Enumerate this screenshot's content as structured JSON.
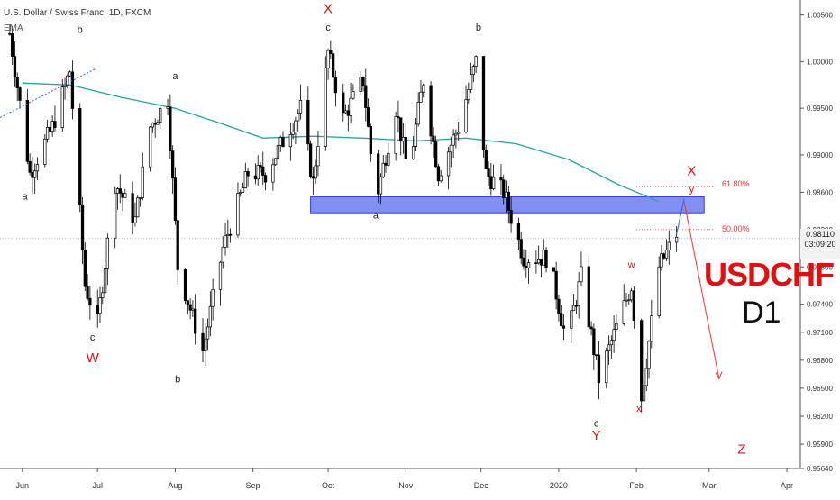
{
  "header": {
    "symbol_title": "U.S. Dollar / Swiss Franc, 1D, FXCM",
    "indicator_label": "EMA"
  },
  "price_badge": {
    "price": "0.98110",
    "countdown": "03:09:20"
  },
  "overlay_title": {
    "pair": "USDCHF",
    "timeframe": "D1"
  },
  "fib_labels": {
    "upper": "61.80%",
    "lower": "50.00%"
  },
  "colors": {
    "candle": "#000000",
    "ema": "#26a69a",
    "zone_fill": "#6b7cf0",
    "zone_border": "#2b3bd9",
    "wave_red": "#e01010",
    "wave_black": "#222222",
    "trendline": "#2962ff",
    "projection": "#e53935",
    "price_badge_bg": "#f2f2f2"
  },
  "chart_data": {
    "type": "candlestick",
    "title": "U.S. Dollar / Swiss Franc, 1D, FXCM",
    "xlabel": "",
    "ylabel": "",
    "x_ticks": [
      "Jun",
      "Jul",
      "Aug",
      "Sep",
      "Oct",
      "Nov",
      "Dec",
      "2020",
      "Feb",
      "Mar",
      "Apr"
    ],
    "y_ticks": [
      1.005,
      1.0,
      0.995,
      0.99,
      0.986,
      0.982,
      0.978,
      0.974,
      0.971,
      0.968,
      0.965,
      0.962,
      0.959,
      0.9564
    ],
    "y_tick_labels": [
      "1.00500",
      "1.00000",
      "0.99500",
      "0.99000",
      "0.98600",
      "0.98200",
      "0.97800",
      "0.97400",
      "0.97100",
      "0.96800",
      "0.96500",
      "0.96200",
      "0.95900",
      "0.95640"
    ],
    "ylim": [
      0.9564,
      1.0066
    ],
    "last_price": 0.9811,
    "ema_line": [
      [
        "2019-06-01",
        0.9977
      ],
      [
        "2019-06-20",
        0.9975
      ],
      [
        "2019-07-10",
        0.9962
      ],
      [
        "2019-08-01",
        0.995
      ],
      [
        "2019-08-20",
        0.9933
      ],
      [
        "2019-09-05",
        0.9918
      ],
      [
        "2019-09-25",
        0.992
      ],
      [
        "2019-10-15",
        0.9918
      ],
      [
        "2019-11-05",
        0.9915
      ],
      [
        "2019-11-25",
        0.9918
      ],
      [
        "2019-12-15",
        0.9912
      ],
      [
        "2020-01-05",
        0.9895
      ],
      [
        "2020-01-25",
        0.9868
      ],
      [
        "2020-02-10",
        0.985
      ]
    ],
    "support_resistance_zone": {
      "from": "2019-09-24",
      "to": "2020-02-28",
      "price_low": 0.9838,
      "price_high": 0.9855
    },
    "fib_levels": [
      {
        "label": "61.80%",
        "price": 0.9866
      },
      {
        "label": "50.00%",
        "price": 0.982
      }
    ],
    "wave_labels": [
      {
        "text": "X",
        "date": "2019-10-01",
        "price": 1.0052,
        "color": "red"
      },
      {
        "text": "c",
        "date": "2019-10-01",
        "price": 1.0033,
        "color": "black"
      },
      {
        "text": "b",
        "date": "2019-06-24",
        "price": 1.0031,
        "color": "black"
      },
      {
        "text": "b",
        "date": "2019-11-30",
        "price": 1.0033,
        "color": "black"
      },
      {
        "text": "a",
        "date": "2019-08-01",
        "price": 0.9981,
        "color": "black"
      },
      {
        "text": "a",
        "date": "2019-06-02",
        "price": 0.9852,
        "color": "black"
      },
      {
        "text": "a",
        "date": "2019-10-20",
        "price": 0.9832,
        "color": "black"
      },
      {
        "text": "c",
        "date": "2019-06-29",
        "price": 0.9701,
        "color": "black"
      },
      {
        "text": "W",
        "date": "2019-06-29",
        "price": 0.9678,
        "color": "red"
      },
      {
        "text": "b",
        "date": "2019-08-02",
        "price": 0.9656,
        "color": "black"
      },
      {
        "text": "X",
        "date": "2020-02-23",
        "price": 0.9878,
        "color": "red"
      },
      {
        "text": "y",
        "date": "2020-02-23",
        "price": 0.986,
        "color": "red"
      },
      {
        "text": "w",
        "date": "2020-01-30",
        "price": 0.9779,
        "color": "red"
      },
      {
        "text": "x",
        "date": "2020-02-02",
        "price": 0.9625,
        "color": "red"
      },
      {
        "text": "c",
        "date": "2020-01-16",
        "price": 0.9609,
        "color": "black"
      },
      {
        "text": "Y",
        "date": "2020-01-16",
        "price": 0.9595,
        "color": "red"
      },
      {
        "text": "Z",
        "date": "2020-03-14",
        "price": 0.958,
        "color": "red"
      }
    ],
    "projection_path": [
      {
        "date": "2020-02-20",
        "price": 0.985
      },
      {
        "date": "2020-03-05",
        "price": 0.966
      }
    ],
    "candles_note": "daily OHLC candles from late May 2019 to mid-Feb 2020"
  }
}
